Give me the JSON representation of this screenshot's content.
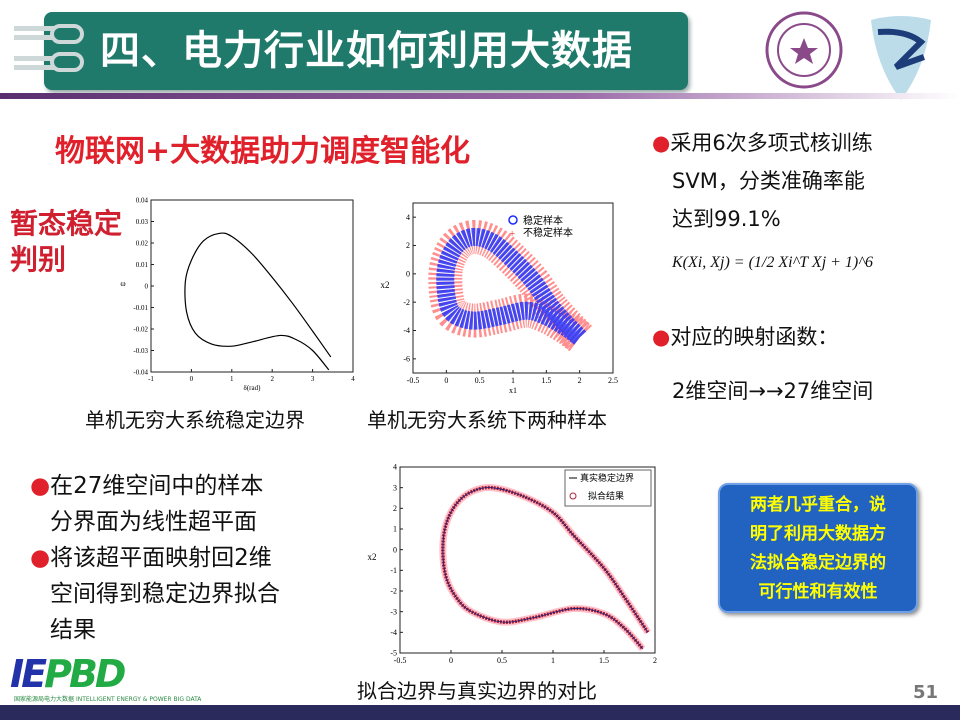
{
  "header": {
    "title": "四、电力行业如何利用大数据",
    "logos": [
      "清华大学 seal",
      "institute shield"
    ]
  },
  "subtitle": "物联网+大数据助力调度智能化",
  "side_label": [
    "暂态稳定",
    "判别"
  ],
  "right_panel": {
    "bullet1": [
      "采用6次多项式核训练",
      "SVM，分类准确率能",
      "达到99.1%"
    ],
    "formula": "K(Xi, Xj) = (1/2 Xi^T Xj + 1)^6",
    "bullet2": "对应的映射函数：",
    "mapping": "2维空间→→27维空间"
  },
  "left_bullets": [
    [
      "在27维空间中的样本",
      "分界面为线性超平面"
    ],
    [
      "将该超平面映射回2维",
      "空间得到稳定边界拟合",
      "结果"
    ]
  ],
  "captions": {
    "chart1": "单机无穷大系统稳定边界",
    "chart2": "单机无穷大系统下两种样本",
    "chart3": "拟合边界与真实边界的对比"
  },
  "callout": "两者几乎重合，说明了利用大数据方法拟合稳定边界的可行性和有效性",
  "callout_lines": [
    "两者几乎重合，说",
    "明了利用大数据方",
    "法拟合稳定边界的",
    "可行性和有效性"
  ],
  "page_number": "51",
  "footer_logo": {
    "text": "IEPBD",
    "sub": [
      "国家能源局电力大数据",
      "INTELLIGENT ENERGY & POWER BIG DATA"
    ]
  },
  "colors": {
    "title_bg": "#1f7a6b",
    "accent_red": "#e0202a",
    "callout_bg": "#2262c0",
    "callout_text": "#ffff00",
    "bottom_bar": "#2b2a5c"
  },
  "chart_data": [
    {
      "type": "line",
      "xlabel": "δ(rad)",
      "ylabel": "ω",
      "xlim": [
        -1,
        4
      ],
      "ylim": [
        -0.04,
        0.04
      ],
      "xticks": [
        "-1",
        "0",
        "1",
        "2",
        "3",
        "4"
      ],
      "yticks": [
        "0.04",
        "0.03",
        "0.02",
        "0.01",
        "0",
        "-0.01",
        "-0.02",
        "-0.03",
        "-0.04"
      ],
      "x": [
        3.45,
        3,
        2.5,
        2,
        1.5,
        1,
        0.7,
        0.3,
        0,
        -0.15,
        -0.12,
        0.1,
        0.5,
        1,
        1.5,
        2.2,
        2.6,
        3,
        3.4
      ],
      "y": [
        -0.033,
        -0.021,
        -0.008,
        0.004,
        0.015,
        0.023,
        0.0245,
        0.021,
        0.012,
        0.002,
        -0.012,
        -0.022,
        -0.027,
        -0.028,
        -0.026,
        -0.023,
        -0.025,
        -0.03,
        -0.039
      ]
    },
    {
      "type": "scatter",
      "xlabel": "x1",
      "ylabel": "x2",
      "xlim": [
        -0.5,
        2.5
      ],
      "ylim": [
        -7,
        5
      ],
      "xticks": [
        "-0.5",
        "0",
        "0.5",
        "1",
        "1.5",
        "2",
        "2.5"
      ],
      "yticks": [
        "4",
        "2",
        "0",
        "-2",
        "-4",
        "-6"
      ],
      "legend": [
        "稳定样本",
        "不稳定样本"
      ],
      "legend_placement": "top-right",
      "series_colors": [
        "#1a2cff",
        "#ff2a2a"
      ],
      "x": [
        2.0,
        1.6,
        1.3,
        1.0,
        0.7,
        0.4,
        0.15,
        0.0,
        0.0,
        0.1,
        0.4,
        0.8,
        1.2,
        1.5,
        1.8,
        2.0
      ],
      "y": [
        -4.5,
        -2.5,
        -0.5,
        1.0,
        2.2,
        2.6,
        2.0,
        0.5,
        -1.5,
        -2.8,
        -3.3,
        -3.0,
        -2.6,
        -3.0,
        -3.8,
        -4.5
      ]
    },
    {
      "type": "line",
      "xlabel": "",
      "ylabel": "x2",
      "xlim": [
        -0.5,
        2
      ],
      "ylim": [
        -5,
        4
      ],
      "xticks": [
        "-0.5",
        "0",
        "0.5",
        "1",
        "1.5",
        "2"
      ],
      "yticks": [
        "4",
        "3",
        "2",
        "1",
        "0",
        "-1",
        "-2",
        "-3",
        "-4",
        "-5"
      ],
      "legend": [
        "真实稳定边界",
        "拟合结果"
      ],
      "legend_placement": "top-right",
      "x": [
        1.93,
        1.7,
        1.5,
        1.2,
        1.0,
        0.7,
        0.4,
        0.2,
        0.05,
        -0.05,
        -0.08,
        -0.05,
        0.05,
        0.2,
        0.5,
        0.8,
        1.2,
        1.5,
        1.7,
        1.88
      ],
      "y": [
        -4,
        -2.3,
        -0.9,
        0.7,
        1.8,
        2.6,
        3.0,
        2.8,
        2.2,
        1.2,
        0,
        -1.3,
        -2.3,
        -3.0,
        -3.5,
        -3.3,
        -2.85,
        -3.1,
        -3.8,
        -4.8
      ]
    }
  ]
}
